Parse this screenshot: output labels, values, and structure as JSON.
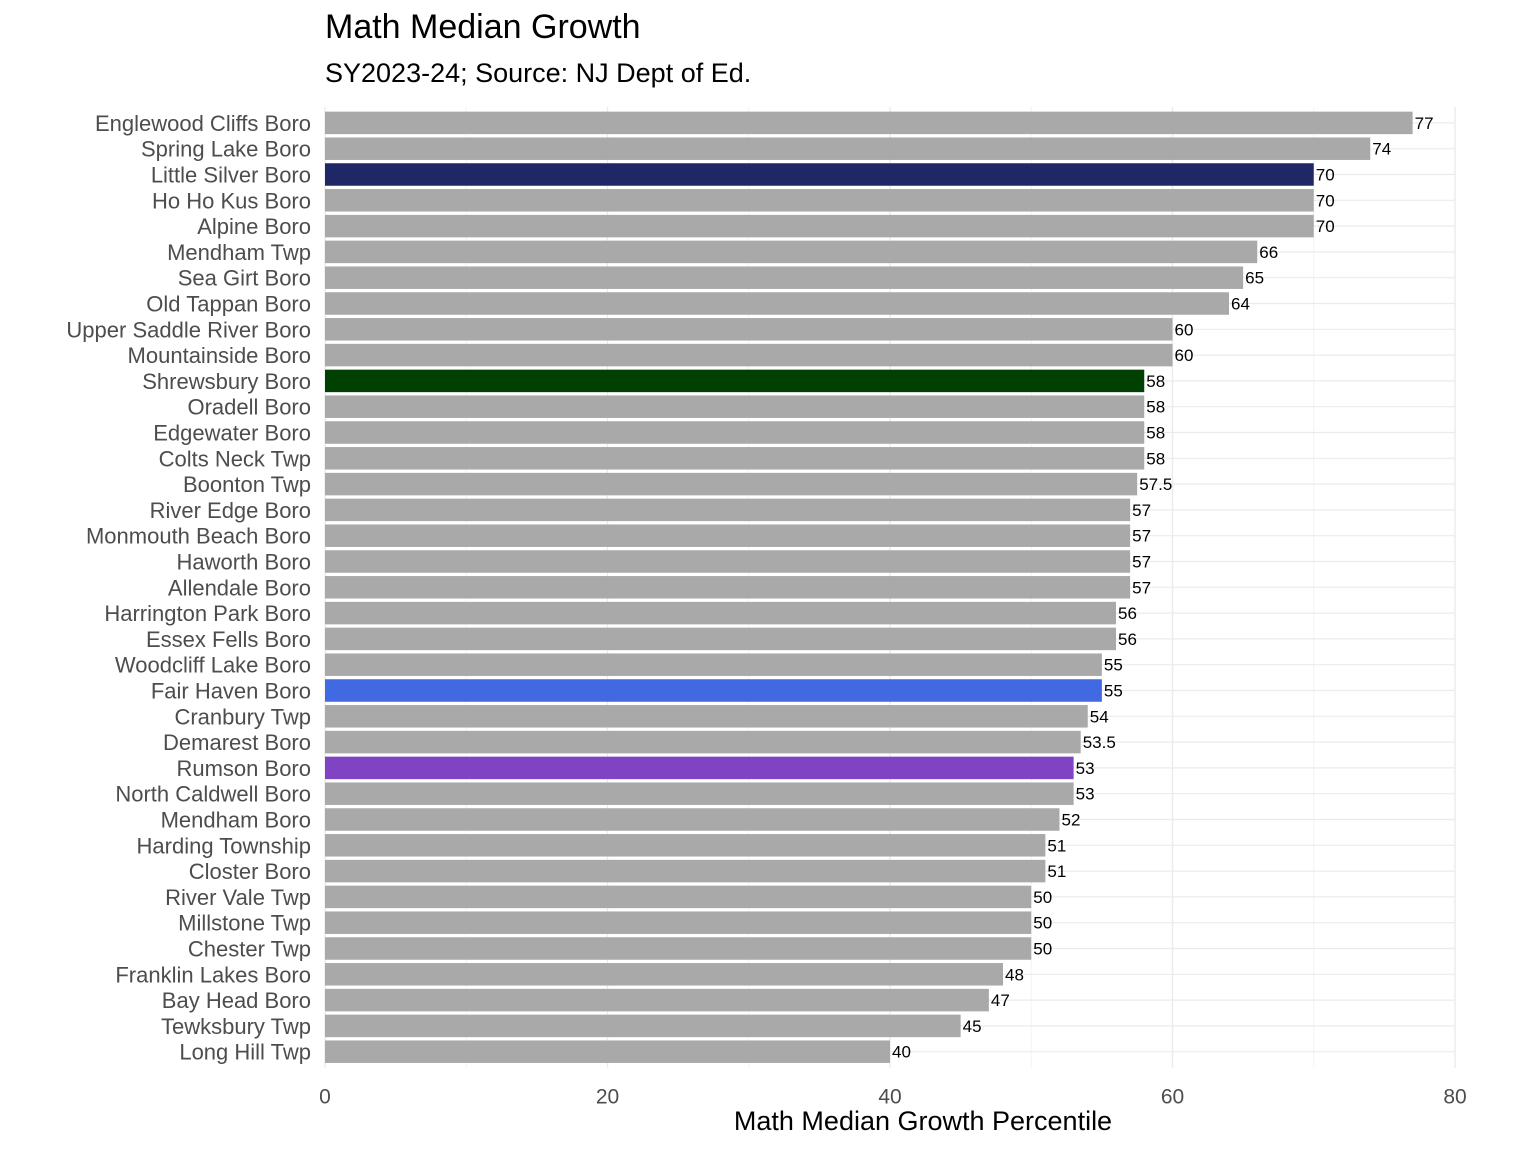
{
  "chart_data": {
    "type": "bar",
    "orientation": "horizontal",
    "title": "Math Median Growth",
    "subtitle": "SY2023-24; Source: NJ Dept of Ed.",
    "xlabel": "Math Median Growth Percentile",
    "ylabel": "",
    "xlim": [
      0,
      80
    ],
    "xticks": [
      0,
      20,
      40,
      60,
      80
    ],
    "grid": true,
    "legend": "none",
    "default_color": "#a9a9a9",
    "categories": [
      "Englewood Cliffs Boro",
      "Spring Lake Boro",
      "Little Silver Boro",
      "Ho Ho Kus Boro",
      "Alpine Boro",
      "Mendham Twp",
      "Sea Girt Boro",
      "Old Tappan Boro",
      "Upper Saddle River Boro",
      "Mountainside Boro",
      "Shrewsbury Boro",
      "Oradell Boro",
      "Edgewater Boro",
      "Colts Neck Twp",
      "Boonton Twp",
      "River Edge Boro",
      "Monmouth Beach Boro",
      "Haworth Boro",
      "Allendale Boro",
      "Harrington Park Boro",
      "Essex Fells Boro",
      "Woodcliff Lake Boro",
      "Fair Haven Boro",
      "Cranbury Twp",
      "Demarest Boro",
      "Rumson Boro",
      "North Caldwell Boro",
      "Mendham Boro",
      "Harding Township",
      "Closter Boro",
      "River Vale Twp",
      "Millstone Twp",
      "Chester Twp",
      "Franklin Lakes Boro",
      "Bay Head Boro",
      "Tewksbury Twp",
      "Long Hill Twp"
    ],
    "values": [
      77,
      74,
      70,
      70,
      70,
      66,
      65,
      64,
      60,
      60,
      58,
      58,
      58,
      58,
      57.5,
      57,
      57,
      57,
      57,
      56,
      56,
      55,
      55,
      54,
      53.5,
      53,
      53,
      52,
      51,
      51,
      50,
      50,
      50,
      48,
      47,
      45,
      40
    ],
    "value_labels": [
      "77",
      "74",
      "70",
      "70",
      "70",
      "66",
      "65",
      "64",
      "60",
      "60",
      "58",
      "58",
      "58",
      "58",
      "57.5",
      "57",
      "57",
      "57",
      "57",
      "56",
      "56",
      "55",
      "55",
      "54",
      "53.5",
      "53",
      "53",
      "52",
      "51",
      "51",
      "50",
      "50",
      "50",
      "48",
      "47",
      "45",
      "40"
    ],
    "highlight_colors": {
      "Little Silver Boro": "#1f2766",
      "Shrewsbury Boro": "#004000",
      "Fair Haven Boro": "#4169e1",
      "Rumson Boro": "#8043c4"
    }
  }
}
